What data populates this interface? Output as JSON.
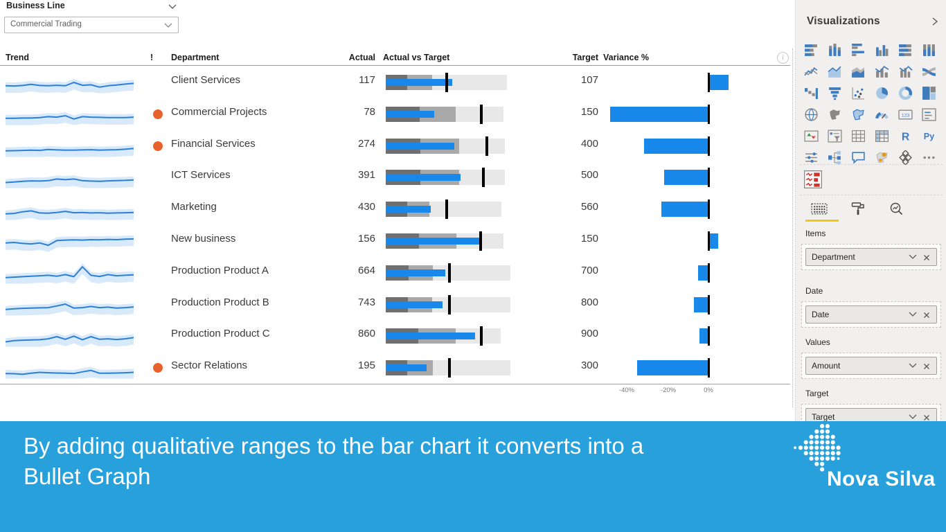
{
  "slicer": {
    "label": "Business Line",
    "value": "Commercial Trading"
  },
  "table": {
    "columns": {
      "trend": "Trend",
      "alert": "!",
      "department": "Department",
      "actual": "Actual",
      "actual_vs_target": "Actual vs Target",
      "target": "Target",
      "variance": "Variance %"
    },
    "rows": [
      {
        "department": "Client Services",
        "actual": 117,
        "target": 107,
        "alert": false,
        "variance_pct": 9.3,
        "bullet": {
          "dark": 0.17,
          "mid": 0.37,
          "light": 0.97,
          "value": 0.535,
          "marker": 0.48
        },
        "spark": [
          36,
          35,
          37,
          42,
          37,
          36,
          38,
          36,
          50,
          38,
          40,
          30,
          36,
          39,
          43,
          46
        ]
      },
      {
        "department": "Commercial Projects",
        "actual": 78,
        "target": 150,
        "alert": true,
        "variance_pct": -48,
        "bullet": {
          "dark": 0.27,
          "mid": 0.56,
          "light": 0.945,
          "value": 0.39,
          "marker": 0.755
        },
        "spark": [
          33,
          33,
          34,
          34,
          36,
          40,
          38,
          44,
          30,
          40,
          38,
          37,
          36,
          36,
          36,
          38
        ]
      },
      {
        "department": "Financial Services",
        "actual": 274,
        "target": 400,
        "alert": true,
        "variance_pct": -31.5,
        "bullet": {
          "dark": 0.28,
          "mid": 0.59,
          "light": 0.955,
          "value": 0.55,
          "marker": 0.8
        },
        "spark": [
          30,
          31,
          32,
          33,
          32,
          36,
          34,
          33,
          33,
          34,
          35,
          33,
          34,
          35,
          37,
          40
        ]
      },
      {
        "department": "ICT Services",
        "actual": 391,
        "target": 500,
        "alert": false,
        "variance_pct": -21.8,
        "bullet": {
          "dark": 0.28,
          "mid": 0.59,
          "light": 0.955,
          "value": 0.6,
          "marker": 0.77
        },
        "spark": [
          28,
          30,
          33,
          35,
          34,
          36,
          43,
          40,
          43,
          36,
          34,
          33,
          35,
          36,
          37,
          39
        ]
      },
      {
        "department": "Marketing",
        "actual": 430,
        "target": 560,
        "alert": false,
        "variance_pct": -23.2,
        "bullet": {
          "dark": 0.17,
          "mid": 0.35,
          "light": 0.925,
          "value": 0.36,
          "marker": 0.475
        },
        "spark": [
          30,
          32,
          39,
          43,
          34,
          33,
          36,
          41,
          35,
          36,
          34,
          35,
          33,
          34,
          35,
          36
        ]
      },
      {
        "department": "New business",
        "actual": 156,
        "target": 150,
        "alert": false,
        "variance_pct": 4.0,
        "bullet": {
          "dark": 0.265,
          "mid": 0.565,
          "light": 0.945,
          "value": 0.755,
          "marker": 0.748
        },
        "spark": [
          42,
          44,
          40,
          38,
          42,
          32,
          52,
          54,
          55,
          54,
          56,
          55,
          57,
          56,
          58,
          59
        ]
      },
      {
        "department": "Production Product A",
        "actual": 664,
        "target": 700,
        "alert": false,
        "variance_pct": -5.1,
        "bullet": {
          "dark": 0.185,
          "mid": 0.375,
          "light": 1.0,
          "value": 0.475,
          "marker": 0.5
        },
        "spark": [
          30,
          32,
          34,
          36,
          38,
          40,
          36,
          43,
          34,
          76,
          40,
          35,
          43,
          38,
          40,
          42
        ]
      },
      {
        "department": "Production Product B",
        "actual": 743,
        "target": 800,
        "alert": false,
        "variance_pct": -7.1,
        "bullet": {
          "dark": 0.18,
          "mid": 0.37,
          "light": 1.0,
          "value": 0.455,
          "marker": 0.5
        },
        "spark": [
          30,
          33,
          35,
          36,
          37,
          38,
          45,
          53,
          36,
          38,
          43,
          38,
          40,
          36,
          38,
          41
        ]
      },
      {
        "department": "Production Product C",
        "actual": 860,
        "target": 900,
        "alert": false,
        "variance_pct": -4.4,
        "bullet": {
          "dark": 0.26,
          "mid": 0.56,
          "light": 0.92,
          "value": 0.715,
          "marker": 0.755
        },
        "spark": [
          25,
          30,
          32,
          33,
          34,
          38,
          47,
          36,
          49,
          34,
          47,
          36,
          38,
          35,
          38,
          43
        ]
      },
      {
        "department": "Sector Relations",
        "actual": 195,
        "target": 300,
        "alert": true,
        "variance_pct": -35,
        "bullet": {
          "dark": 0.175,
          "mid": 0.375,
          "light": 1.0,
          "value": 0.33,
          "marker": 0.5
        },
        "spark": [
          26,
          25,
          23,
          27,
          31,
          29,
          28,
          27,
          26,
          33,
          39,
          27,
          27,
          28,
          29,
          31
        ]
      }
    ],
    "axis_ticks": [
      "-40%",
      "-20%",
      "0%"
    ]
  },
  "chart_data": {
    "type": "bullet",
    "categories": [
      "Client Services",
      "Commercial Projects",
      "Financial Services",
      "ICT Services",
      "Marketing",
      "New business",
      "Production Product A",
      "Production Product B",
      "Production Product C",
      "Sector Relations"
    ],
    "series": [
      {
        "name": "Actual",
        "values": [
          117,
          78,
          274,
          391,
          430,
          156,
          664,
          743,
          860,
          195
        ]
      },
      {
        "name": "Target",
        "values": [
          107,
          150,
          400,
          500,
          560,
          150,
          700,
          800,
          900,
          300
        ]
      },
      {
        "name": "Variance %",
        "values": [
          9.3,
          -48,
          -31.5,
          -21.8,
          -23.2,
          4,
          -5.1,
          -7.1,
          -4.4,
          -35
        ]
      }
    ],
    "variance_axis": {
      "tick_labels": [
        "-40%",
        "-20%",
        "0%"
      ],
      "tick_values": [
        -40,
        -20,
        0
      ],
      "unit": "%"
    },
    "notes": "Bullet graph with dark/medium/light qualitative ranges, blue actual bar, black target marker; sparkline trend per row with light-blue range band"
  },
  "viz_pane": {
    "title": "Visualizations",
    "gallery_icons": [
      "stacked-bar-chart",
      "stacked-column-chart",
      "clustered-bar-chart",
      "clustered-column-chart",
      "100-stacked-bar-chart",
      "100-stacked-column-chart",
      "line-chart",
      "area-chart",
      "stacked-area-chart",
      "line-stacked-column-chart",
      "line-clustered-column-chart",
      "ribbon-chart",
      "waterfall-chart",
      "funnel-chart",
      "scatter-chart",
      "pie-chart",
      "donut-chart",
      "treemap",
      "map",
      "filled-map",
      "shape-map",
      "gauge",
      "card",
      "multi-row-card",
      "kpi",
      "slicer",
      "table",
      "matrix",
      "r-script",
      "python-script",
      "key-influencers",
      "decomposition-tree",
      "qa",
      "arcgis-map",
      "power-apps",
      "more-options"
    ],
    "custom_visual": "nova-silva-bullet-chart",
    "tabs": [
      "fields",
      "format",
      "analytics"
    ],
    "wells": [
      {
        "label": "Items",
        "value": "Department"
      },
      {
        "label": "Date",
        "value": "Date"
      },
      {
        "label": "Values",
        "value": "Amount"
      },
      {
        "label": "Target",
        "value": "Target"
      }
    ]
  },
  "banner": {
    "line1": "By adding qualitative ranges to the bar chart it converts into a",
    "line2": "Bullet Graph",
    "brand": "Nova Silva"
  },
  "colors": {
    "accent_blue": "#1889eb",
    "banner_blue": "#27a0dc",
    "alert_orange": "#e8622d",
    "range_dark": "#6f6f6f",
    "range_mid": "#a9a9a9",
    "range_light": "#e8e8e8",
    "spark_line": "#2a7fd6",
    "spark_band": "#d8e9f9",
    "tab_active_yellow": "#f2c811"
  }
}
